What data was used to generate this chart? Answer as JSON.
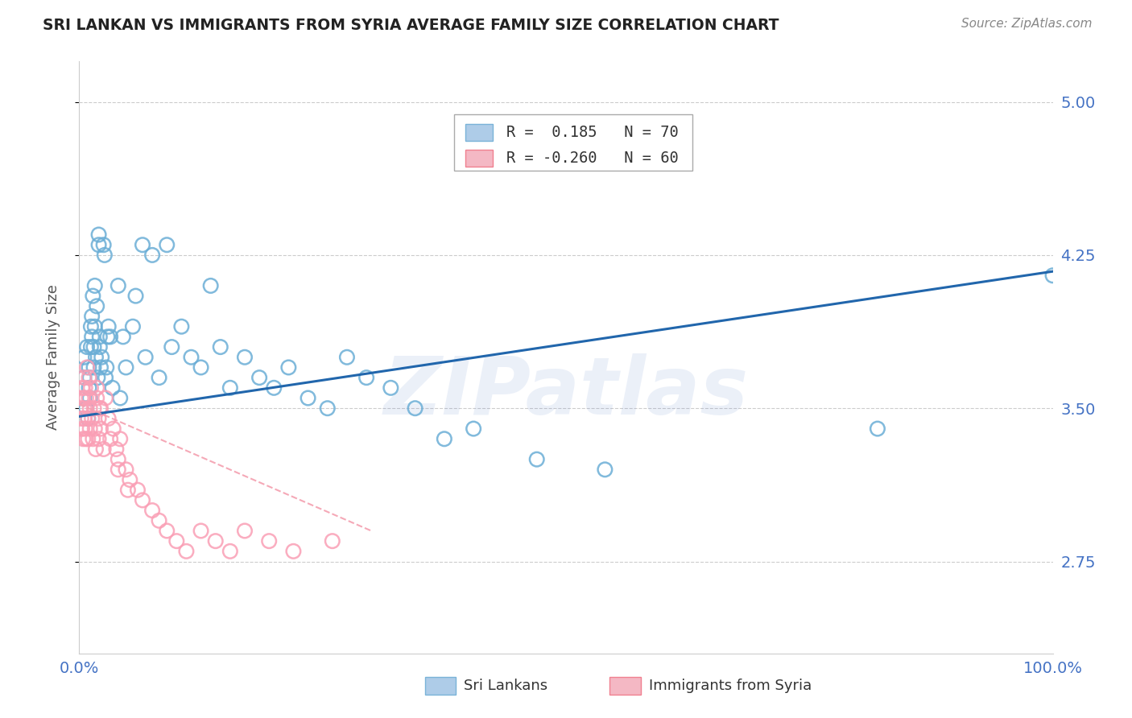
{
  "title": "SRI LANKAN VS IMMIGRANTS FROM SYRIA AVERAGE FAMILY SIZE CORRELATION CHART",
  "source": "Source: ZipAtlas.com",
  "ylabel": "Average Family Size",
  "yticks": [
    2.75,
    3.5,
    4.25,
    5.0
  ],
  "xlim": [
    0.0,
    1.0
  ],
  "ylim": [
    2.3,
    5.2
  ],
  "watermark": "ZIPatlas",
  "series1_name": "Sri Lankans",
  "series1_color": "#6baed6",
  "series1_R": "0.185",
  "series1_N": "70",
  "series2_name": "Immigrants from Syria",
  "series2_color": "#fa9fb5",
  "series2_R": "-0.260",
  "series2_N": "60",
  "axis_color": "#4472c4",
  "title_color": "#222222",
  "grid_color": "#cccccc",
  "trend1_color": "#2166ac",
  "trend2_color": "#f4a0b0",
  "sri_lankans_x": [
    0.005,
    0.005,
    0.005,
    0.007,
    0.008,
    0.009,
    0.01,
    0.01,
    0.011,
    0.011,
    0.012,
    0.012,
    0.013,
    0.013,
    0.014,
    0.015,
    0.015,
    0.016,
    0.016,
    0.017,
    0.018,
    0.019,
    0.02,
    0.02,
    0.021,
    0.021,
    0.022,
    0.023,
    0.025,
    0.026,
    0.027,
    0.028,
    0.029,
    0.03,
    0.032,
    0.034,
    0.04,
    0.042,
    0.045,
    0.048,
    0.055,
    0.058,
    0.065,
    0.068,
    0.075,
    0.082,
    0.09,
    0.095,
    0.105,
    0.115,
    0.125,
    0.135,
    0.145,
    0.155,
    0.17,
    0.185,
    0.2,
    0.215,
    0.235,
    0.255,
    0.275,
    0.295,
    0.32,
    0.345,
    0.375,
    0.405,
    0.47,
    0.54,
    0.82,
    1.0
  ],
  "sri_lankans_y": [
    3.55,
    3.65,
    3.75,
    3.5,
    3.8,
    3.45,
    3.6,
    3.7,
    3.55,
    3.65,
    3.8,
    3.9,
    3.85,
    3.95,
    4.05,
    3.7,
    3.8,
    4.1,
    3.9,
    3.75,
    4.0,
    3.65,
    4.3,
    4.35,
    3.85,
    3.8,
    3.7,
    3.75,
    4.3,
    4.25,
    3.65,
    3.7,
    3.85,
    3.9,
    3.85,
    3.6,
    4.1,
    3.55,
    3.85,
    3.7,
    3.9,
    4.05,
    4.3,
    3.75,
    4.25,
    3.65,
    4.3,
    3.8,
    3.9,
    3.75,
    3.7,
    4.1,
    3.8,
    3.6,
    3.75,
    3.65,
    3.6,
    3.7,
    3.55,
    3.5,
    3.75,
    3.65,
    3.6,
    3.5,
    3.35,
    3.4,
    3.25,
    3.2,
    3.4,
    4.15
  ],
  "syria_x": [
    0.002,
    0.002,
    0.002,
    0.003,
    0.003,
    0.004,
    0.004,
    0.005,
    0.005,
    0.005,
    0.006,
    0.006,
    0.007,
    0.007,
    0.008,
    0.009,
    0.009,
    0.01,
    0.01,
    0.011,
    0.011,
    0.012,
    0.013,
    0.014,
    0.015,
    0.016,
    0.017,
    0.018,
    0.02,
    0.02,
    0.021,
    0.022,
    0.025,
    0.027,
    0.03,
    0.032,
    0.035,
    0.038,
    0.04,
    0.042,
    0.048,
    0.052,
    0.06,
    0.065,
    0.075,
    0.082,
    0.09,
    0.1,
    0.11,
    0.125,
    0.14,
    0.155,
    0.17,
    0.195,
    0.22,
    0.26,
    0.04,
    0.05,
    0.018,
    0.022
  ],
  "syria_y": [
    3.55,
    3.5,
    3.45,
    3.6,
    3.4,
    3.55,
    3.35,
    3.65,
    3.5,
    3.45,
    3.6,
    3.4,
    3.55,
    3.35,
    3.7,
    3.45,
    3.35,
    3.65,
    3.55,
    3.5,
    3.4,
    3.6,
    3.45,
    3.35,
    3.5,
    3.4,
    3.3,
    3.55,
    3.45,
    3.35,
    3.5,
    3.4,
    3.3,
    3.55,
    3.45,
    3.35,
    3.4,
    3.3,
    3.25,
    3.35,
    3.2,
    3.15,
    3.1,
    3.05,
    3.0,
    2.95,
    2.9,
    2.85,
    2.8,
    2.9,
    2.85,
    2.8,
    2.9,
    2.85,
    2.8,
    2.85,
    3.2,
    3.1,
    3.6,
    3.5
  ],
  "trend1_x0": 0.0,
  "trend1_y0": 3.46,
  "trend1_x1": 1.0,
  "trend1_y1": 4.17,
  "trend2_x0": 0.0,
  "trend2_y0": 3.52,
  "trend2_x1": 0.3,
  "trend2_y1": 2.9
}
